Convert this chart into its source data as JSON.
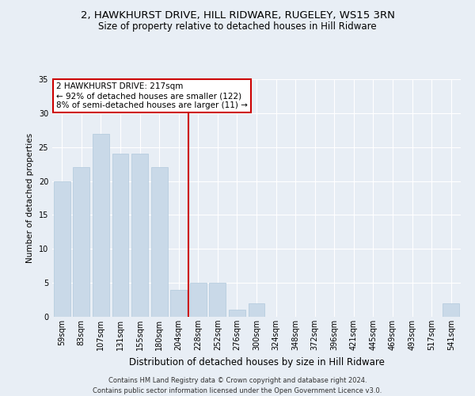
{
  "title1": "2, HAWKHURST DRIVE, HILL RIDWARE, RUGELEY, WS15 3RN",
  "title2": "Size of property relative to detached houses in Hill Ridware",
  "xlabel": "Distribution of detached houses by size in Hill Ridware",
  "ylabel": "Number of detached properties",
  "categories": [
    "59sqm",
    "83sqm",
    "107sqm",
    "131sqm",
    "155sqm",
    "180sqm",
    "204sqm",
    "228sqm",
    "252sqm",
    "276sqm",
    "300sqm",
    "324sqm",
    "348sqm",
    "372sqm",
    "396sqm",
    "421sqm",
    "445sqm",
    "469sqm",
    "493sqm",
    "517sqm",
    "541sqm"
  ],
  "values": [
    20,
    22,
    27,
    24,
    24,
    22,
    4,
    5,
    5,
    1,
    2,
    0,
    0,
    0,
    0,
    0,
    0,
    0,
    0,
    0,
    2
  ],
  "bar_color": "#c9d9e8",
  "bar_edge_color": "#b0c8dc",
  "vline_color": "#cc0000",
  "annotation_text": "2 HAWKHURST DRIVE: 217sqm\n← 92% of detached houses are smaller (122)\n8% of semi-detached houses are larger (11) →",
  "annotation_box_color": "#ffffff",
  "annotation_box_edge_color": "#cc0000",
  "ylim": [
    0,
    35
  ],
  "yticks": [
    0,
    5,
    10,
    15,
    20,
    25,
    30,
    35
  ],
  "footer1": "Contains HM Land Registry data © Crown copyright and database right 2024.",
  "footer2": "Contains public sector information licensed under the Open Government Licence v3.0.",
  "bg_color": "#e8eef5",
  "plot_bg_color": "#e8eef5",
  "title1_fontsize": 9.5,
  "title2_fontsize": 8.5,
  "xlabel_fontsize": 8.5,
  "ylabel_fontsize": 7.5,
  "tick_fontsize": 7,
  "footer_fontsize": 6,
  "annotation_fontsize": 7.5
}
